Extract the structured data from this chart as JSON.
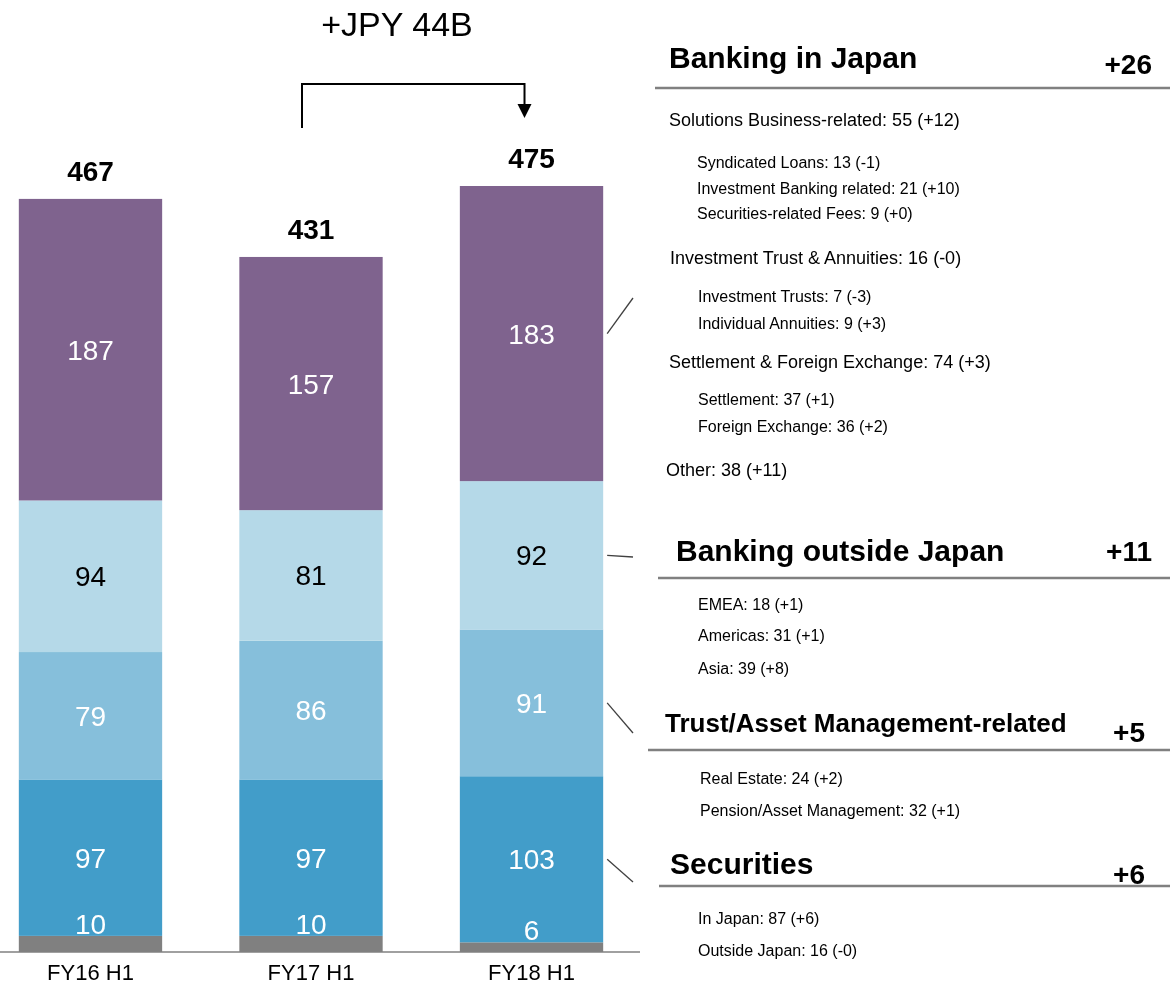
{
  "chart_data": {
    "type": "bar",
    "stacked": true,
    "categories": [
      "FY16 H1",
      "FY17 H1",
      "FY18 H1"
    ],
    "series": [
      {
        "color": "#808080",
        "values": [
          10,
          10,
          6
        ]
      },
      {
        "color": "#429dc9",
        "values": [
          97,
          97,
          103
        ]
      },
      {
        "color": "#86bfdb",
        "values": [
          79,
          86,
          91
        ]
      },
      {
        "color": "#b5d9e8",
        "values": [
          94,
          81,
          92
        ]
      },
      {
        "color": "#7f638e",
        "values": [
          187,
          157,
          183
        ]
      }
    ],
    "data_labels": true,
    "totals": [
      "467",
      "431",
      "475"
    ],
    "tick_labels": "x",
    "annotations": [
      "+JPY 44B",
      "Banking in Japan",
      "+26",
      "Solutions Business-related: 55 (+12)",
      "Syndicated Loans: 13 (-1)",
      "Investment Banking related: 21 (+10)",
      "Securities-related Fees: 9 (+0)",
      "Investment Trust & Annuities: 16 (-0)",
      "Investment Trusts: 7 (-3)",
      "Individual Annuities: 9 (+3)",
      "Settlement & Foreign Exchange: 74 (+3)",
      "Settlement: 37 (+1)",
      "Foreign Exchange: 36 (+2)",
      "Other: 38 (+11)",
      "Banking outside Japan",
      "+11",
      "EMEA: 18 (+1)",
      "Americas: 31 (+1)",
      "Asia: 39 (+8)",
      "Trust/Asset Management-related",
      "+5",
      "Real Estate: 24 (+2)",
      "Pension/Asset Management: 32 (+1)",
      "Securities",
      "+6",
      "In Japan: 87 (+6)",
      "Outside Japan: 16 (-0)"
    ]
  }
}
